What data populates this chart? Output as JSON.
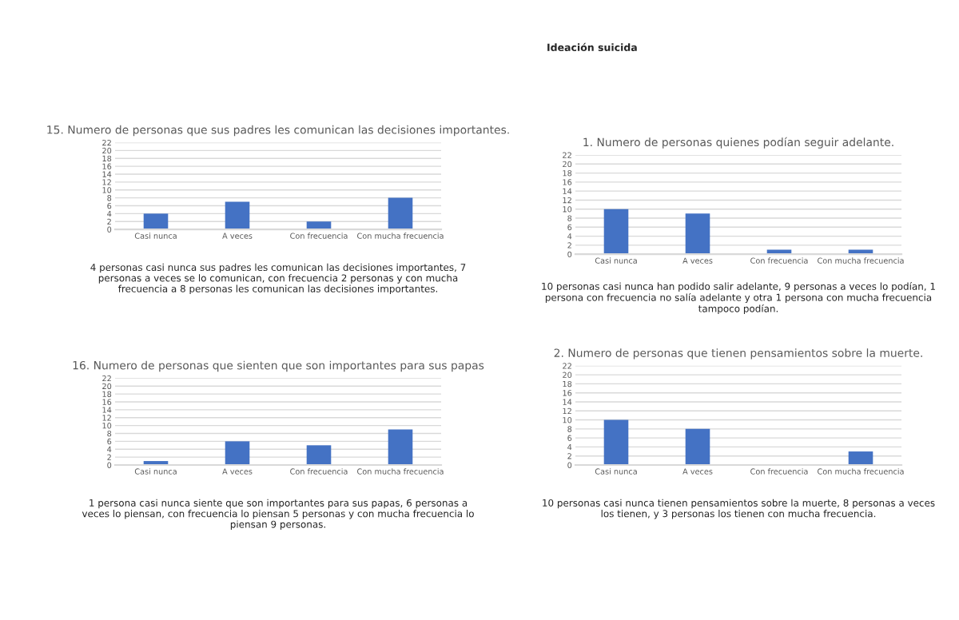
{
  "chart_data": [
    {
      "type": "bar",
      "title": "15. Numero de personas que sus padres les comunican las decisiones importantes.",
      "categories": [
        "Casi nunca",
        "A veces",
        "Con frecuencia",
        "Con mucha frecuencia"
      ],
      "values": [
        4,
        7,
        2,
        8
      ],
      "color": "#4472c4",
      "ylim": [
        0,
        22
      ],
      "yticks": [
        0,
        2,
        4,
        6,
        8,
        10,
        12,
        14,
        16,
        18,
        20,
        22
      ],
      "grid": "y",
      "annotations": [
        "4 personas casi nunca sus padres les comunican las decisiones importantes, 7 personas a veces se lo comunican, con frecuencia 2 personas y con mucha frecuencia a 8 personas les comunican las decisiones importantes."
      ]
    },
    {
      "type": "bar",
      "title": "16. Numero de personas que sienten que son importantes para sus papas",
      "categories": [
        "Casi nunca",
        "A veces",
        "Con frecuencia",
        "Con mucha frecuencia"
      ],
      "values": [
        1,
        6,
        5,
        9
      ],
      "color": "#4472c4",
      "ylim": [
        0,
        22
      ],
      "yticks": [
        0,
        2,
        4,
        6,
        8,
        10,
        12,
        14,
        16,
        18,
        20,
        22
      ],
      "grid": "y",
      "annotations": [
        "1 persona casi nunca siente que son importantes para sus papas, 6 personas a veces lo piensan, con frecuencia lo piensan 5 personas y con mucha frecuencia lo piensan 9 personas."
      ]
    },
    {
      "type": "bar",
      "title": "1. Numero de personas quienes podían seguir adelante.",
      "categories": [
        "Casi nunca",
        "A veces",
        "Con frecuencia",
        "Con mucha frecuencia"
      ],
      "values": [
        10,
        9,
        1,
        1
      ],
      "color": "#4472c4",
      "ylim": [
        0,
        22
      ],
      "yticks": [
        0,
        2,
        4,
        6,
        8,
        10,
        12,
        14,
        16,
        18,
        20,
        22
      ],
      "grid": "y",
      "annotations": [
        "Ideación suicida",
        "10 personas casi nunca han podido salir adelante, 9 personas a veces lo podían, 1 persona con frecuencia no salía adelante y otra 1 persona con mucha frecuencia tampoco podían."
      ]
    },
    {
      "type": "bar",
      "title": "2. Numero de personas que tienen pensamientos sobre la muerte.",
      "categories": [
        "Casi nunca",
        "A veces",
        "Con frecuencia",
        "Con mucha frecuencia"
      ],
      "values": [
        10,
        8,
        0,
        3
      ],
      "color": "#4472c4",
      "ylim": [
        0,
        22
      ],
      "yticks": [
        0,
        2,
        4,
        6,
        8,
        10,
        12,
        14,
        16,
        18,
        20,
        22
      ],
      "grid": "y",
      "annotations": [
        "10 personas casi nunca tienen pensamientos sobre la muerte, 8 personas a veces los tienen, y 3 personas los tienen con mucha frecuencia."
      ]
    }
  ]
}
